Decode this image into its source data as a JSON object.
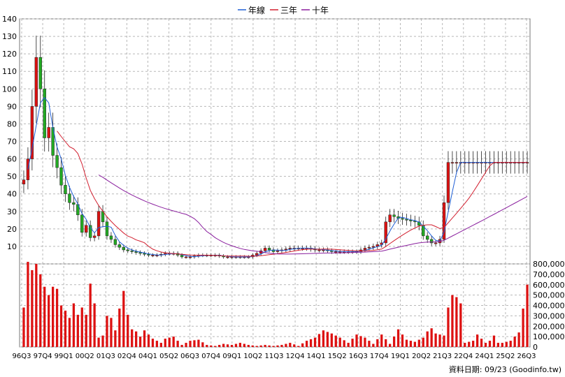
{
  "chart_data": {
    "type": "candlestick",
    "legend": [
      {
        "name": "年線",
        "color": "#1f5fd6"
      },
      {
        "name": "三年",
        "color": "#d21f2f"
      },
      {
        "name": "十年",
        "color": "#8a1f9e"
      }
    ],
    "legend_position": "top-center",
    "grid": true,
    "y_price_range": [
      0,
      140
    ],
    "y_price_ticks": [
      "10",
      "20",
      "30",
      "40",
      "50",
      "60",
      "70",
      "80",
      "90",
      "100",
      "110",
      "120",
      "130",
      "140"
    ],
    "y_volume_range": [
      0,
      800000
    ],
    "y_volume_ticks": [
      "0",
      "100,000",
      "200,000",
      "300,000",
      "400,000",
      "500,000",
      "600,000",
      "700,000",
      "800,000"
    ],
    "x_ticks": [
      "96Q3",
      "97Q4",
      "99Q1",
      "00Q2",
      "01Q3",
      "02Q4",
      "04Q1",
      "05Q2",
      "06Q3",
      "07Q4",
      "09Q1",
      "10Q2",
      "11Q3",
      "12Q4",
      "14Q1",
      "15Q2",
      "16Q3",
      "17Q4",
      "19Q1",
      "20Q2",
      "21Q3",
      "22Q4",
      "24Q1",
      "25Q2",
      "26Q3"
    ],
    "footer": "資料日期: 09/23  (Goodinfo.tw)",
    "up_color": "#dd1111",
    "down_color": "#22aa22",
    "price_anchors": [
      [
        0,
        48
      ],
      [
        1,
        60
      ],
      [
        2,
        90
      ],
      [
        3,
        118
      ],
      [
        4,
        100
      ],
      [
        5,
        72
      ],
      [
        6,
        78
      ],
      [
        7,
        62
      ],
      [
        8,
        55
      ],
      [
        9,
        45
      ],
      [
        10,
        40
      ],
      [
        11,
        35
      ],
      [
        12,
        34
      ],
      [
        13,
        28
      ],
      [
        14,
        18
      ],
      [
        15,
        22
      ],
      [
        16,
        15
      ],
      [
        17,
        16
      ],
      [
        18,
        30
      ],
      [
        19,
        24
      ],
      [
        20,
        16
      ],
      [
        21,
        14
      ],
      [
        22,
        11
      ],
      [
        24,
        8
      ],
      [
        26,
        7
      ],
      [
        28,
        6
      ],
      [
        30,
        5
      ],
      [
        32,
        5
      ],
      [
        34,
        6
      ],
      [
        36,
        6
      ],
      [
        38,
        4
      ],
      [
        40,
        4
      ],
      [
        42,
        5
      ],
      [
        44,
        5
      ],
      [
        46,
        5
      ],
      [
        48,
        4
      ],
      [
        50,
        4
      ],
      [
        52,
        4
      ],
      [
        54,
        4
      ],
      [
        56,
        6
      ],
      [
        58,
        9
      ],
      [
        60,
        7
      ],
      [
        62,
        8
      ],
      [
        64,
        9
      ],
      [
        66,
        9
      ],
      [
        68,
        9
      ],
      [
        70,
        8
      ],
      [
        72,
        8
      ],
      [
        74,
        7
      ],
      [
        76,
        7
      ],
      [
        78,
        7
      ],
      [
        80,
        7
      ],
      [
        82,
        9
      ],
      [
        84,
        10
      ],
      [
        86,
        12
      ],
      [
        87,
        24
      ],
      [
        88,
        28
      ],
      [
        90,
        26
      ],
      [
        92,
        25
      ],
      [
        94,
        24
      ],
      [
        95,
        22
      ],
      [
        96,
        16
      ],
      [
        97,
        14
      ],
      [
        98,
        12
      ],
      [
        99,
        12
      ],
      [
        100,
        14
      ],
      [
        101,
        35
      ],
      [
        102,
        58
      ]
    ],
    "volume_anchors": [
      [
        0,
        380000
      ],
      [
        1,
        820000
      ],
      [
        2,
        740000
      ],
      [
        3,
        800000
      ],
      [
        4,
        700000
      ],
      [
        5,
        580000
      ],
      [
        6,
        500000
      ],
      [
        7,
        580000
      ],
      [
        8,
        560000
      ],
      [
        9,
        400000
      ],
      [
        10,
        350000
      ],
      [
        11,
        280000
      ],
      [
        12,
        420000
      ],
      [
        13,
        310000
      ],
      [
        14,
        380000
      ],
      [
        15,
        310000
      ],
      [
        16,
        610000
      ],
      [
        17,
        420000
      ],
      [
        18,
        90000
      ],
      [
        19,
        110000
      ],
      [
        20,
        300000
      ],
      [
        21,
        280000
      ],
      [
        22,
        160000
      ],
      [
        23,
        370000
      ],
      [
        24,
        540000
      ],
      [
        25,
        310000
      ],
      [
        26,
        170000
      ],
      [
        27,
        150000
      ],
      [
        28,
        100000
      ],
      [
        29,
        160000
      ],
      [
        30,
        120000
      ],
      [
        31,
        80000
      ],
      [
        32,
        60000
      ],
      [
        33,
        40000
      ],
      [
        34,
        80000
      ],
      [
        35,
        90000
      ],
      [
        36,
        100000
      ],
      [
        37,
        60000
      ],
      [
        38,
        20000
      ],
      [
        40,
        60000
      ],
      [
        42,
        70000
      ],
      [
        44,
        20000
      ],
      [
        46,
        10000
      ],
      [
        48,
        30000
      ],
      [
        50,
        20000
      ],
      [
        52,
        40000
      ],
      [
        54,
        20000
      ],
      [
        56,
        10000
      ],
      [
        58,
        20000
      ],
      [
        60,
        10000
      ],
      [
        62,
        20000
      ],
      [
        64,
        40000
      ],
      [
        66,
        10000
      ],
      [
        68,
        60000
      ],
      [
        70,
        90000
      ],
      [
        72,
        160000
      ],
      [
        74,
        130000
      ],
      [
        76,
        90000
      ],
      [
        78,
        40000
      ],
      [
        80,
        120000
      ],
      [
        82,
        90000
      ],
      [
        84,
        30000
      ],
      [
        86,
        120000
      ],
      [
        88,
        30000
      ],
      [
        90,
        170000
      ],
      [
        92,
        70000
      ],
      [
        94,
        50000
      ],
      [
        96,
        90000
      ],
      [
        97,
        150000
      ],
      [
        98,
        180000
      ],
      [
        99,
        130000
      ],
      [
        100,
        120000
      ],
      [
        101,
        110000
      ],
      [
        102,
        380000
      ],
      [
        103,
        500000
      ],
      [
        104,
        480000
      ],
      [
        105,
        420000
      ],
      [
        106,
        40000
      ],
      [
        107,
        50000
      ],
      [
        108,
        60000
      ],
      [
        109,
        120000
      ],
      [
        110,
        80000
      ],
      [
        111,
        40000
      ],
      [
        112,
        60000
      ],
      [
        113,
        110000
      ],
      [
        114,
        40000
      ],
      [
        115,
        40000
      ],
      [
        116,
        50000
      ],
      [
        117,
        60000
      ],
      [
        118,
        100000
      ],
      [
        119,
        140000
      ],
      [
        120,
        370000
      ],
      [
        121,
        600000
      ]
    ],
    "num_bars": 122,
    "ma_year_start": 1,
    "ma3_start": 8,
    "ma10_start": 18
  }
}
